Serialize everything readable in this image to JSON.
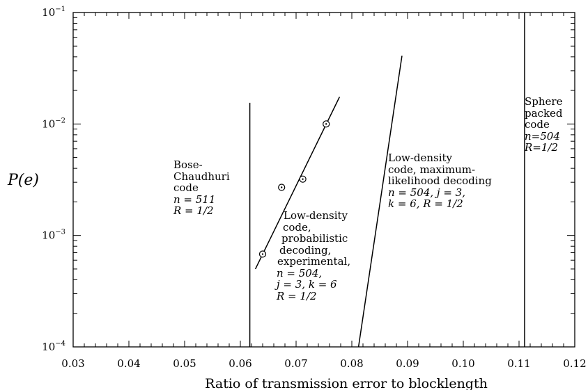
{
  "chart_data": {
    "type": "line",
    "xlabel": "Ratio of transmission error to blocklength",
    "ylabel": "P(e)",
    "x_ticks": [
      "0.03",
      "0.04",
      "0.05",
      "0.06",
      "0.07",
      "0.08",
      "0.09",
      "0.10",
      "0.11",
      "0.12"
    ],
    "y_ticks": [
      {
        "base": "10",
        "exp": "−1"
      },
      {
        "base": "10",
        "exp": "−2"
      },
      {
        "base": "10",
        "exp": "−3"
      },
      {
        "base": "10",
        "exp": "−4"
      }
    ],
    "xlim": [
      0.03,
      0.12
    ],
    "ylim": [
      0.0001,
      0.1
    ],
    "y_scale": "log",
    "grid": false,
    "series": [
      {
        "x": [
          0.0617,
          0.0617
        ],
        "y": [
          0.0001,
          0.0155
        ]
      },
      {
        "x": [
          0.0627,
          0.0778
        ],
        "y": [
          0.0005,
          0.0175
        ]
      },
      {
        "x": [
          0.0812,
          0.089
        ],
        "y": [
          0.0001,
          0.041
        ]
      },
      {
        "x": [
          0.111,
          0.111
        ],
        "y": [
          0.0001,
          0.1
        ]
      }
    ],
    "points": [
      {
        "x": 0.064,
        "y": 0.00068
      },
      {
        "x": 0.0674,
        "y": 0.0027
      },
      {
        "x": 0.0712,
        "y": 0.0032
      },
      {
        "x": 0.0754,
        "y": 0.01
      }
    ],
    "annotations": [
      {
        "lines": [
          "Bose-",
          "Chaudhuri",
          "code",
          "n = 511",
          "R = 1/2"
        ]
      },
      {
        "lines": [
          "Low-density",
          "code,",
          "probabilistic",
          "decoding,",
          "experimental,",
          "n = 504,",
          "j = 3, k = 6",
          "R = 1/2"
        ]
      },
      {
        "lines": [
          "Low-density",
          "code, maximum-",
          "likelihood decoding",
          "n = 504, j = 3,",
          "k = 6, R = 1/2"
        ]
      },
      {
        "lines": [
          "Sphere",
          "packed",
          "code",
          "n=504",
          "R=1/2"
        ]
      }
    ]
  }
}
